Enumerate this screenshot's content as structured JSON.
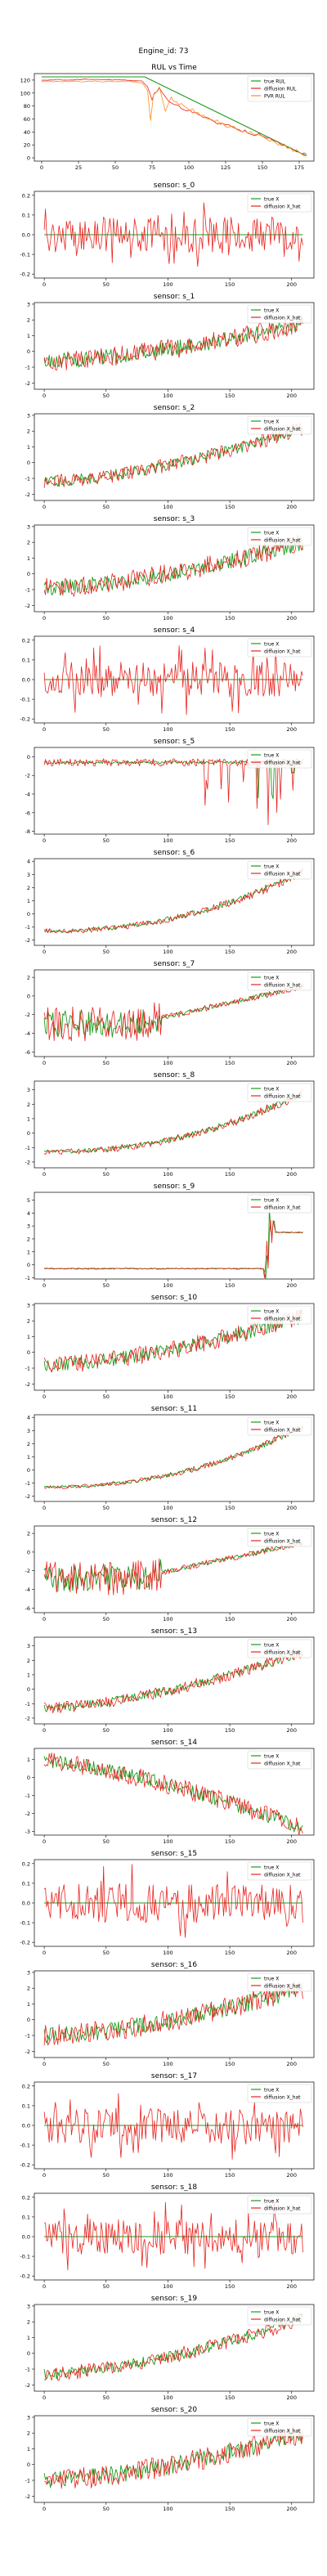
{
  "figure": {
    "suptitle": "Engine_id: 73"
  },
  "colors": {
    "green": "#1a9a1a",
    "red": "#e8231f",
    "orange": "#ff8c1a",
    "teal": "#2e8b57",
    "axis": "#000000"
  },
  "rul_legend": [
    "true RUL",
    "diffusion RUL",
    "PVR RUL"
  ],
  "sensor_legend": [
    "true X",
    "diffusion X_hat"
  ],
  "chart_data": [
    {
      "type": "line",
      "title": "RUL vs Time",
      "xlabel": "",
      "ylabel": "",
      "xlim": [
        -5,
        185
      ],
      "ylim": [
        -5,
        130
      ],
      "xticks": [
        0,
        25,
        50,
        75,
        100,
        125,
        150,
        175
      ],
      "yticks": [
        0,
        20,
        40,
        60,
        80,
        100,
        120
      ],
      "legend": "upper right",
      "series": [
        {
          "name": "true RUL",
          "color": "#1a9a1a",
          "points": [
            [
              0,
              125
            ],
            [
              70,
              125
            ],
            [
              180,
              3
            ]
          ]
        },
        {
          "name": "diffusion RUL",
          "color": "#e8231f",
          "points": [
            [
              0,
              120
            ],
            [
              30,
              121
            ],
            [
              60,
              120
            ],
            [
              68,
              118
            ],
            [
              72,
              110
            ],
            [
              75,
              92
            ],
            [
              80,
              108
            ],
            [
              86,
              90
            ],
            [
              95,
              78
            ],
            [
              110,
              62
            ],
            [
              125,
              50
            ],
            [
              140,
              40
            ],
            [
              155,
              30
            ],
            [
              165,
              20
            ],
            [
              175,
              10
            ],
            [
              180,
              5
            ]
          ]
        },
        {
          "name": "PVR RUL",
          "color": "#ff8c1a",
          "points": [
            [
              0,
              118
            ],
            [
              30,
              118
            ],
            [
              60,
              118
            ],
            [
              68,
              116
            ],
            [
              72,
              105
            ],
            [
              74,
              60
            ],
            [
              76,
              95
            ],
            [
              80,
              112
            ],
            [
              84,
              70
            ],
            [
              88,
              92
            ],
            [
              95,
              82
            ],
            [
              110,
              65
            ],
            [
              125,
              50
            ],
            [
              140,
              40
            ],
            [
              155,
              28
            ],
            [
              165,
              18
            ],
            [
              175,
              8
            ],
            [
              180,
              4
            ]
          ]
        }
      ]
    },
    {
      "type": "line",
      "title": "sensor: s_0",
      "kind": "noise",
      "xlim": [
        -8,
        218
      ],
      "ylim": [
        -0.22,
        0.22
      ],
      "yticks": [
        -0.2,
        -0.1,
        0.0,
        0.1,
        0.2
      ],
      "xticks": [
        0,
        50,
        100,
        150,
        200
      ],
      "true_X": 0.0,
      "noise_amplitude": 0.09,
      "legend": "upper right"
    },
    {
      "type": "line",
      "title": "sensor: s_1",
      "kind": "trend_up",
      "xlim": [
        -8,
        218
      ],
      "ylim": [
        -2.4,
        3.1
      ],
      "yticks": [
        -2,
        -1,
        0,
        1,
        2,
        3
      ],
      "xticks": [
        0,
        50,
        100,
        150,
        200
      ],
      "start": -0.6,
      "end": 1.8,
      "noise_amplitude": 0.55,
      "legend": "upper right"
    },
    {
      "type": "line",
      "title": "sensor: s_2",
      "kind": "trend_up",
      "xlim": [
        -8,
        218
      ],
      "ylim": [
        -2.4,
        3.1
      ],
      "yticks": [
        -2,
        -1,
        0,
        1,
        2,
        3
      ],
      "xticks": [
        0,
        50,
        100,
        150,
        200
      ],
      "start": -1.2,
      "end": 2.2,
      "noise_amplitude": 0.4,
      "legend": "upper right"
    },
    {
      "type": "line",
      "title": "sensor: s_3",
      "kind": "trend_up",
      "xlim": [
        -8,
        218
      ],
      "ylim": [
        -2.4,
        3.1
      ],
      "yticks": [
        -2,
        -1,
        0,
        1,
        2,
        3
      ],
      "xticks": [
        0,
        50,
        100,
        150,
        200
      ],
      "start": -0.9,
      "end": 2.0,
      "noise_amplitude": 0.55,
      "legend": "upper right"
    },
    {
      "type": "line",
      "title": "sensor: s_4",
      "kind": "noise",
      "xlim": [
        -8,
        218
      ],
      "ylim": [
        -0.22,
        0.22
      ],
      "yticks": [
        -0.2,
        -0.1,
        0.0,
        0.1,
        0.2
      ],
      "xticks": [
        0,
        50,
        100,
        150,
        200
      ],
      "true_X": 0.0,
      "noise_amplitude": 0.09,
      "legend": "upper right"
    },
    {
      "type": "line",
      "title": "sensor: s_5",
      "kind": "dips",
      "xlim": [
        -8,
        218
      ],
      "ylim": [
        -8.3,
        1.0
      ],
      "yticks": [
        -8,
        -6,
        -4,
        -2,
        0
      ],
      "xticks": [
        0,
        50,
        100,
        150,
        200
      ],
      "true_X": -0.6,
      "noise_amplitude": 0.4,
      "legend": "upper right"
    },
    {
      "type": "line",
      "title": "sensor: s_6",
      "kind": "smooth_up",
      "xlim": [
        -8,
        218
      ],
      "ylim": [
        -2.4,
        4.2
      ],
      "yticks": [
        -2,
        -1,
        0,
        1,
        2,
        3,
        4
      ],
      "xticks": [
        0,
        50,
        100,
        150,
        200
      ],
      "start": -1.3,
      "end": 3.2,
      "noise_amplitude": 0.25,
      "legend": "upper right"
    },
    {
      "type": "line",
      "title": "sensor: s_7",
      "kind": "noisy_start",
      "xlim": [
        -8,
        218
      ],
      "ylim": [
        -6.5,
        2.8
      ],
      "yticks": [
        -6,
        -4,
        -2,
        0,
        2
      ],
      "xticks": [
        0,
        50,
        100,
        150,
        200
      ],
      "start": -3.0,
      "end": 1.0,
      "noise_amplitude": 1.6,
      "legend": "upper right"
    },
    {
      "type": "line",
      "title": "sensor: s_8",
      "kind": "smooth_up",
      "xlim": [
        -8,
        218
      ],
      "ylim": [
        -2.4,
        3.6
      ],
      "yticks": [
        -2,
        -1,
        0,
        1,
        2,
        3
      ],
      "xticks": [
        0,
        50,
        100,
        150,
        200
      ],
      "start": -1.3,
      "end": 2.8,
      "noise_amplitude": 0.25,
      "legend": "upper right"
    },
    {
      "type": "line",
      "title": "sensor: s_9",
      "kind": "step",
      "xlim": [
        -8,
        218
      ],
      "ylim": [
        -1.1,
        5.6
      ],
      "yticks": [
        -1,
        0,
        1,
        2,
        3,
        4,
        5
      ],
      "xticks": [
        0,
        50,
        100,
        150,
        200
      ],
      "start": -0.3,
      "end": 2.5,
      "noise_amplitude": 0.05,
      "legend": "upper right"
    },
    {
      "type": "line",
      "title": "sensor: s_10",
      "kind": "trend_up",
      "xlim": [
        -8,
        218
      ],
      "ylim": [
        -2.4,
        3.1
      ],
      "yticks": [
        -2,
        -1,
        0,
        1,
        2,
        3
      ],
      "xticks": [
        0,
        50,
        100,
        150,
        200
      ],
      "start": -0.8,
      "end": 2.3,
      "noise_amplitude": 0.5,
      "legend": "upper right"
    },
    {
      "type": "line",
      "title": "sensor: s_11",
      "kind": "smooth_up",
      "xlim": [
        -8,
        218
      ],
      "ylim": [
        -2.4,
        4.2
      ],
      "yticks": [
        -2,
        -1,
        0,
        1,
        2,
        3,
        4
      ],
      "xticks": [
        0,
        50,
        100,
        150,
        200
      ],
      "start": -1.3,
      "end": 3.3,
      "noise_amplitude": 0.2,
      "legend": "upper right"
    },
    {
      "type": "line",
      "title": "sensor: s_12",
      "kind": "noisy_start",
      "xlim": [
        -8,
        218
      ],
      "ylim": [
        -6.5,
        2.8
      ],
      "yticks": [
        -6,
        -4,
        -2,
        0,
        2
      ],
      "xticks": [
        0,
        50,
        100,
        150,
        200
      ],
      "start": -2.8,
      "end": 1.0,
      "noise_amplitude": 1.6,
      "legend": "upper right"
    },
    {
      "type": "line",
      "title": "sensor: s_13",
      "kind": "trend_up",
      "xlim": [
        -8,
        218
      ],
      "ylim": [
        -2.4,
        3.6
      ],
      "yticks": [
        -2,
        -1,
        0,
        1,
        2,
        3
      ],
      "xticks": [
        0,
        50,
        100,
        150,
        200
      ],
      "start": -1.3,
      "end": 2.6,
      "noise_amplitude": 0.35,
      "legend": "upper right"
    },
    {
      "type": "line",
      "title": "sensor: s_14",
      "kind": "trend_down",
      "xlim": [
        -8,
        218
      ],
      "ylim": [
        -3.2,
        1.6
      ],
      "yticks": [
        -3,
        -2,
        -1,
        0,
        1
      ],
      "xticks": [
        0,
        50,
        100,
        150,
        200
      ],
      "start": 0.9,
      "end": -2.8,
      "noise_amplitude": 0.45,
      "legend": "upper right"
    },
    {
      "type": "line",
      "title": "sensor: s_15",
      "kind": "noise",
      "xlim": [
        -8,
        218
      ],
      "ylim": [
        -0.22,
        0.22
      ],
      "yticks": [
        -0.2,
        -0.1,
        0.0,
        0.1,
        0.2
      ],
      "xticks": [
        0,
        50,
        100,
        150,
        200
      ],
      "true_X": 0.0,
      "noise_amplitude": 0.1,
      "legend": "upper right"
    },
    {
      "type": "line",
      "title": "sensor: s_16",
      "kind": "trend_up",
      "xlim": [
        -8,
        218
      ],
      "ylim": [
        -2.4,
        3.1
      ],
      "yticks": [
        -2,
        -1,
        0,
        1,
        2,
        3
      ],
      "xticks": [
        0,
        50,
        100,
        150,
        200
      ],
      "start": -1.0,
      "end": 2.0,
      "noise_amplitude": 0.6,
      "legend": "upper right"
    },
    {
      "type": "line",
      "title": "sensor: s_17",
      "kind": "noise",
      "xlim": [
        -8,
        218
      ],
      "ylim": [
        -0.22,
        0.22
      ],
      "yticks": [
        -0.2,
        -0.1,
        0.0,
        0.1,
        0.2
      ],
      "xticks": [
        0,
        50,
        100,
        150,
        200
      ],
      "true_X": 0.0,
      "noise_amplitude": 0.09,
      "legend": "upper right"
    },
    {
      "type": "line",
      "title": "sensor: s_18",
      "kind": "noise",
      "xlim": [
        -8,
        218
      ],
      "ylim": [
        -0.22,
        0.22
      ],
      "yticks": [
        -0.2,
        -0.1,
        0.0,
        0.1,
        0.2
      ],
      "xticks": [
        0,
        50,
        100,
        150,
        200
      ],
      "true_X": 0.0,
      "noise_amplitude": 0.09,
      "legend": "upper right"
    },
    {
      "type": "line",
      "title": "sensor: s_19",
      "kind": "trend_up",
      "xlim": [
        -8,
        218
      ],
      "ylim": [
        -2.4,
        3.1
      ],
      "yticks": [
        -2,
        -1,
        0,
        1,
        2,
        3
      ],
      "xticks": [
        0,
        50,
        100,
        150,
        200
      ],
      "start": -1.3,
      "end": 2.2,
      "noise_amplitude": 0.4,
      "legend": "upper right"
    },
    {
      "type": "line",
      "title": "sensor: s_20",
      "kind": "trend_up",
      "xlim": [
        -8,
        218
      ],
      "ylim": [
        -2.4,
        3.1
      ],
      "yticks": [
        -2,
        -1,
        0,
        1,
        2,
        3
      ],
      "xticks": [
        0,
        50,
        100,
        150,
        200
      ],
      "start": -1.0,
      "end": 2.0,
      "noise_amplitude": 0.6,
      "legend": "upper right"
    }
  ]
}
